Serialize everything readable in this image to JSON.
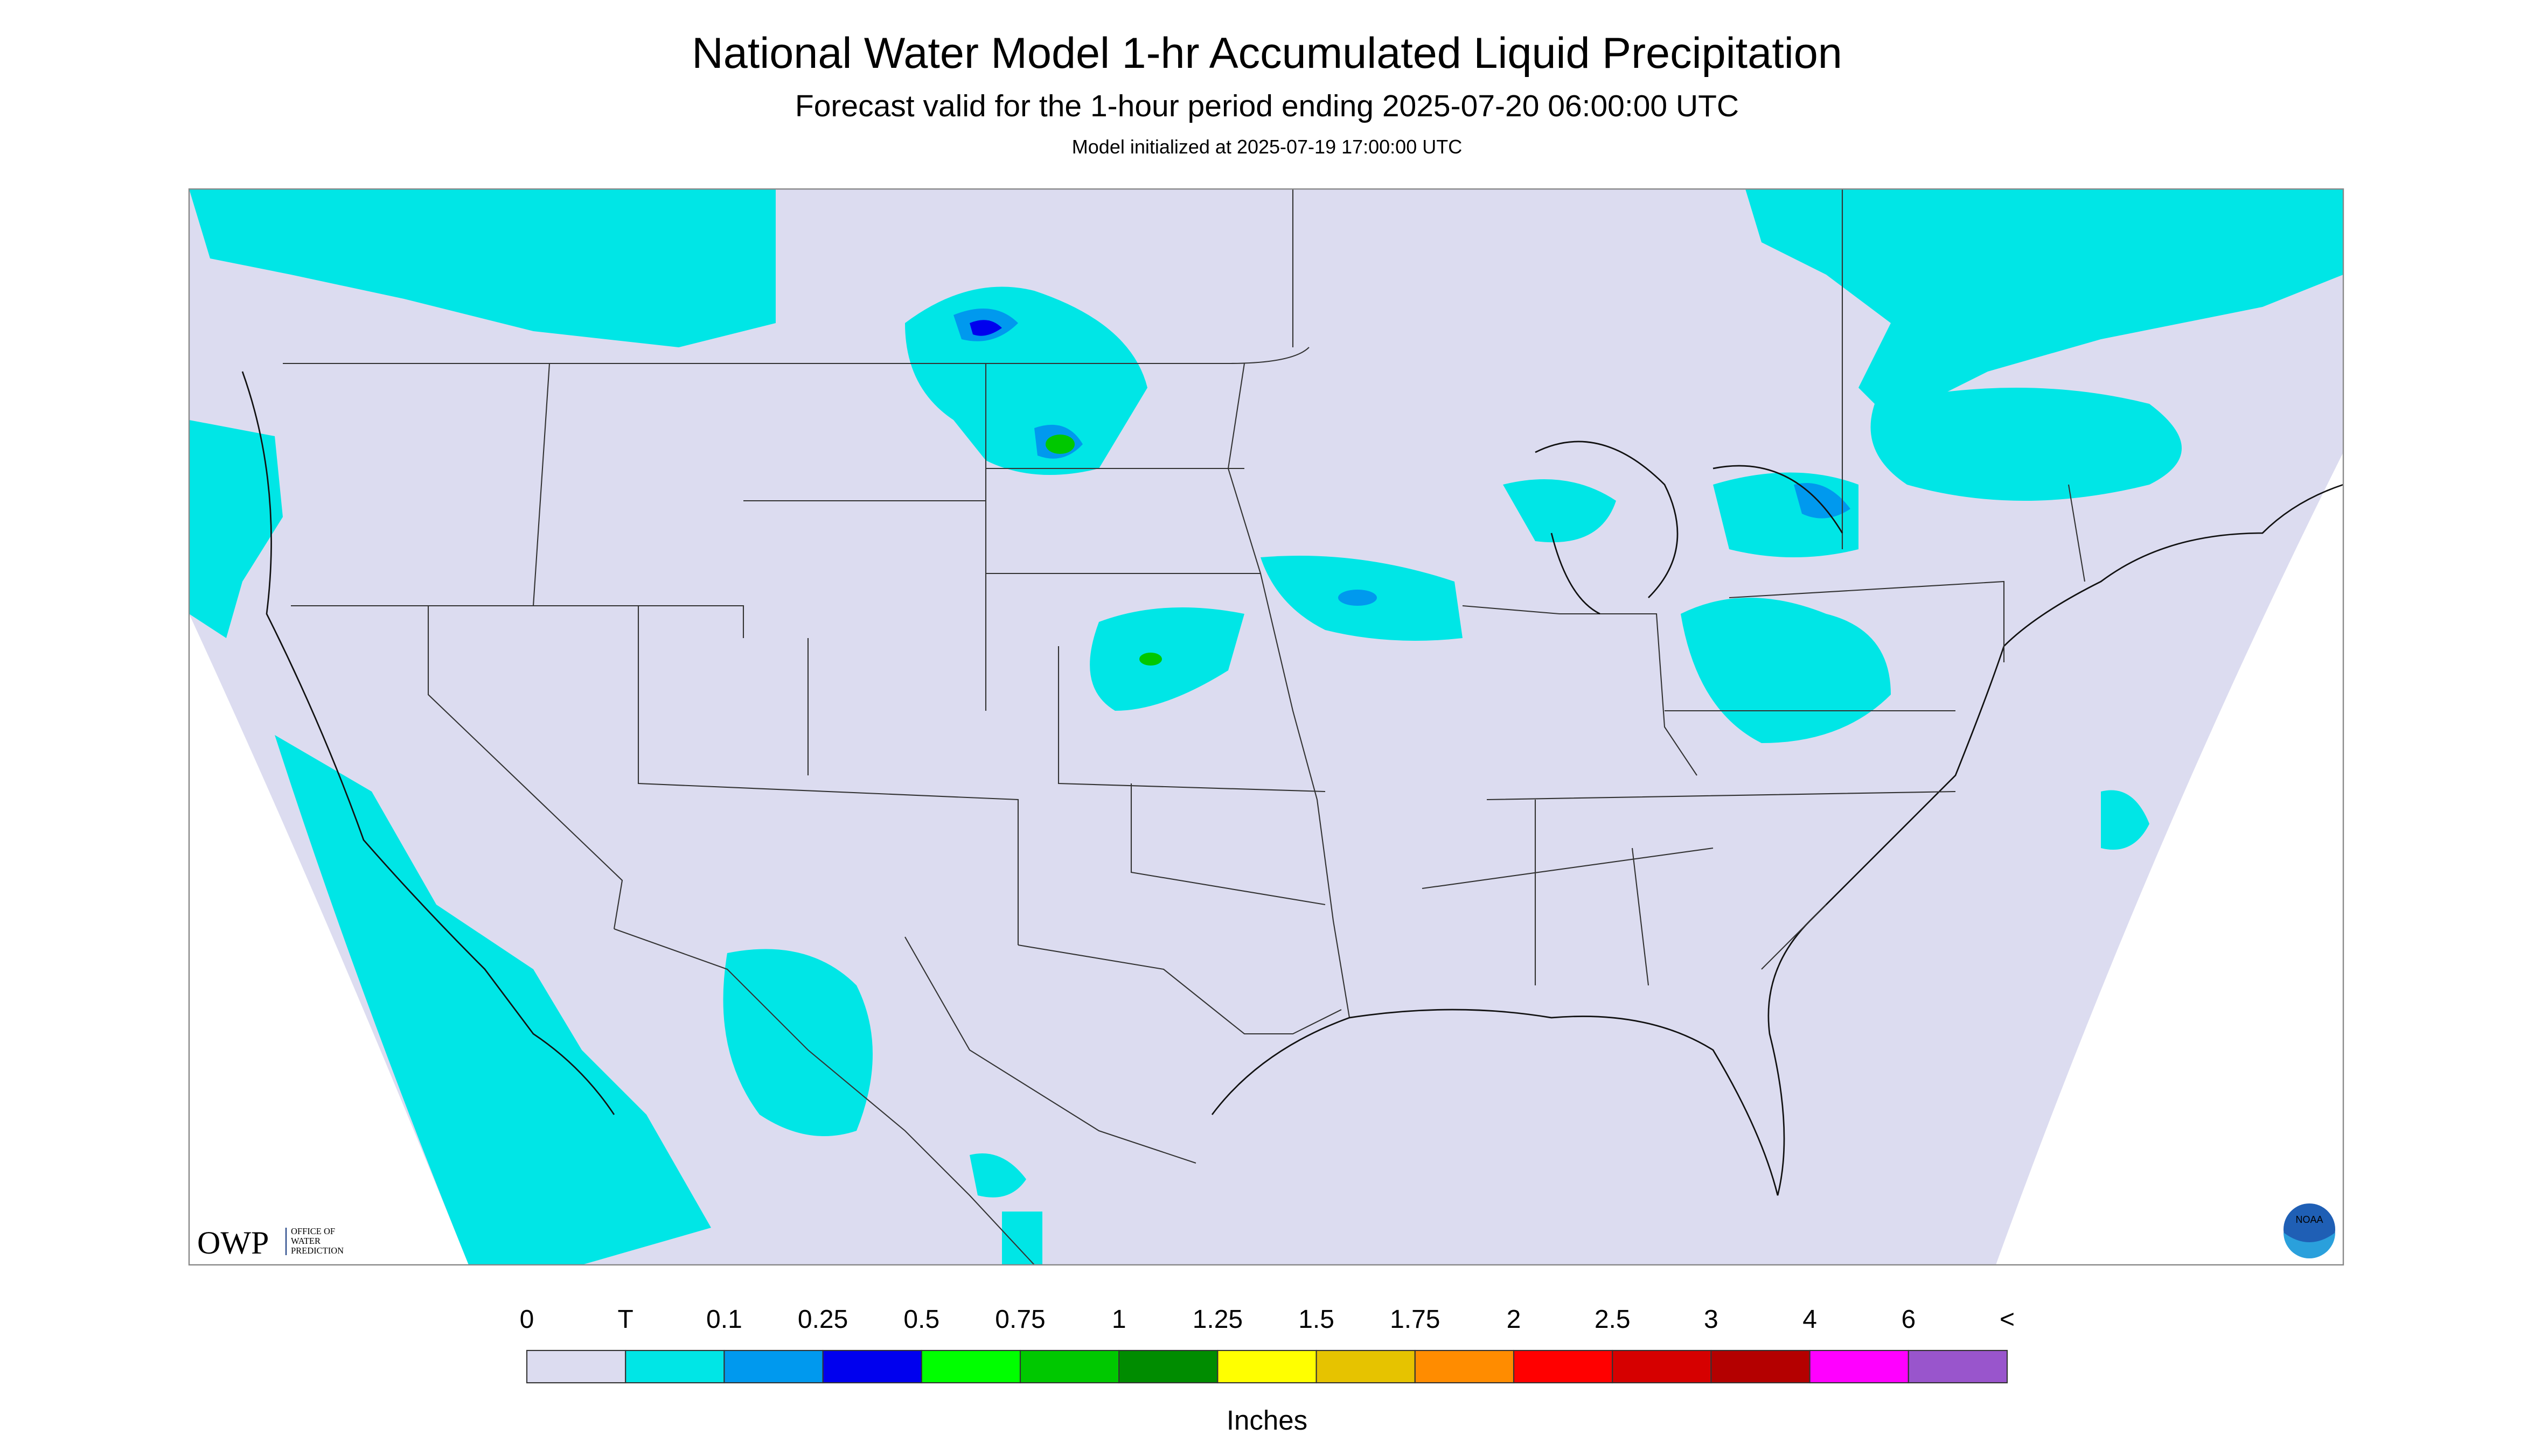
{
  "header": {
    "title": "National Water Model 1-hr Accumulated Liquid Precipitation",
    "subtitle": "Forecast valid for the 1-hour period ending 2025-07-20 06:00:00 UTC",
    "initialized": "Model initialized at 2025-07-19 17:00:00 UTC"
  },
  "legend": {
    "labels": [
      "0",
      "T",
      "0.1",
      "0.25",
      "0.5",
      "0.75",
      "1",
      "1.25",
      "1.5",
      "1.75",
      "2",
      "2.5",
      "3",
      "4",
      "6",
      "<"
    ],
    "colors": [
      "#dcdcf0",
      "#00e6e6",
      "#0099ee",
      "#0000ee",
      "#00ff00",
      "#00c800",
      "#008c00",
      "#ffff00",
      "#e6c300",
      "#ff8c00",
      "#ff0000",
      "#d60000",
      "#b40000",
      "#ff00ff",
      "#9955cc"
    ],
    "unit": "Inches"
  },
  "logos": {
    "owp": "OWP",
    "owp_lines": [
      "OFFICE OF",
      "WATER",
      "PREDICTION"
    ],
    "noaa": "NOAA"
  }
}
